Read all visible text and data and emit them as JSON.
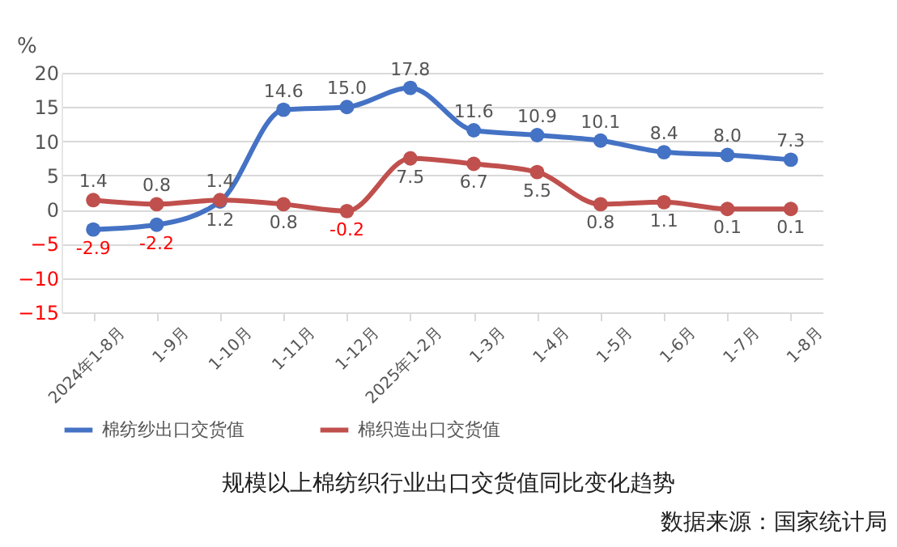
{
  "chart_data": {
    "type": "line",
    "title": "规模以上棉纺织行业出口交货值同比变化趋势",
    "ylabel": "%",
    "categories": [
      "2024年1-8月",
      "1-9月",
      "1-10月",
      "1-11月",
      "1-12月",
      "2025年1-2月",
      "1-3月",
      "1-4月",
      "1-5月",
      "1-6月",
      "1-7月",
      "1-8月"
    ],
    "series": [
      {
        "name": "棉纺纱出口交货值",
        "color": "#4472c4",
        "values": [
          -2.9,
          -2.2,
          1.2,
          14.6,
          15.0,
          17.8,
          11.6,
          10.9,
          10.1,
          8.4,
          8.0,
          7.3
        ],
        "value_labels": [
          "-2.9",
          "-2.2",
          "1.2",
          "14.6",
          "15.0",
          "17.8",
          "11.6",
          "10.9",
          "10.1",
          "8.4",
          "8.0",
          "7.3"
        ]
      },
      {
        "name": "棉织造出口交货值",
        "color": "#c0504d",
        "values": [
          1.4,
          0.8,
          1.4,
          0.8,
          -0.2,
          7.5,
          6.7,
          5.5,
          0.8,
          1.1,
          0.1,
          0.1
        ],
        "value_labels": [
          "1.4",
          "0.8",
          "1.4",
          "0.8",
          "-0.2",
          "7.5",
          "6.7",
          "5.5",
          "0.8",
          "1.1",
          "0.1",
          "0.1"
        ]
      }
    ],
    "ylim": [
      -15,
      20
    ],
    "yticks": [
      -15,
      -10,
      -5,
      0,
      5,
      10,
      15,
      20
    ],
    "grid": "y",
    "legend": "bottom",
    "marker": "circle",
    "line_style": "solid",
    "annotations": [
      "数据来源：国家统计局"
    ]
  }
}
